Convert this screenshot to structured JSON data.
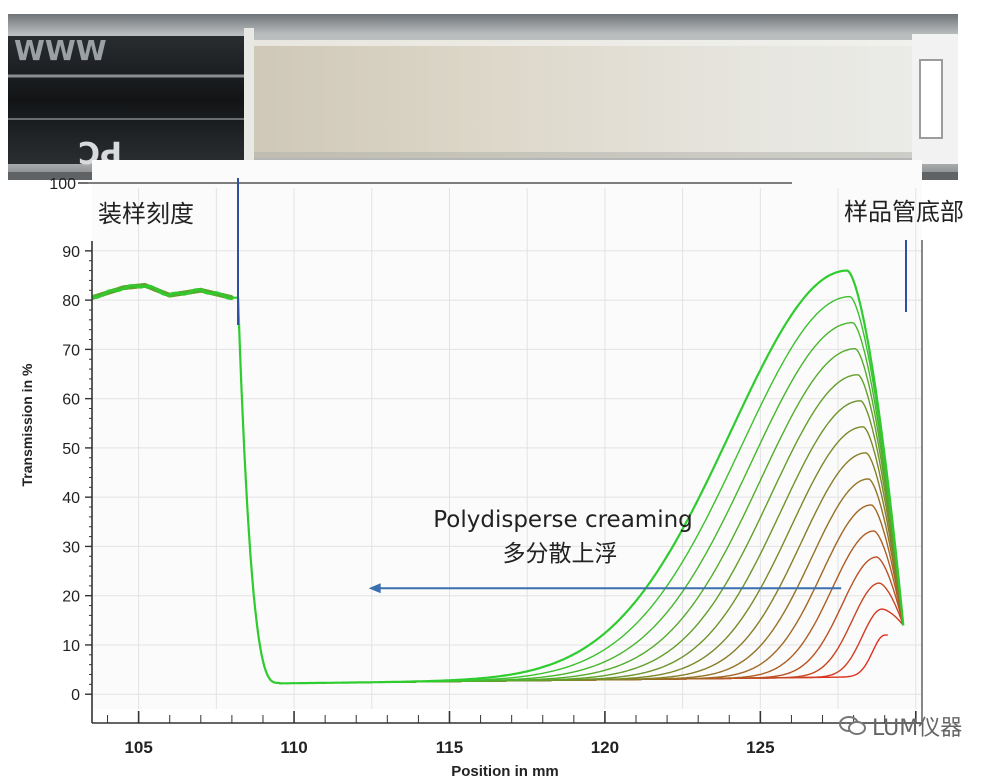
{
  "photo": {
    "cell_marking_left": "WWW",
    "cell_marking_bottom": "PC"
  },
  "annotations": {
    "fill_mark": "装样刻度",
    "tube_bottom": "样品管底部",
    "arrow_label_en": "Polydisperse creaming",
    "arrow_label_zh": "多分散上浮"
  },
  "watermark": "LUM仪器",
  "colors": {
    "early_profile": "#e03020",
    "late_profile": "#2fcc2f",
    "arrow": "#3b6fb0",
    "marker_line": "#2f4fa0",
    "grid": "#e3e3e3"
  },
  "chart_data": {
    "type": "line",
    "xlabel": "Position in mm",
    "ylabel": "Transmission in %",
    "xlim": [
      103.5,
      130.2
    ],
    "ylim": [
      -3,
      92
    ],
    "x_ticks": [
      105,
      110,
      115,
      120,
      125
    ],
    "y_ticks": [
      0,
      10,
      20,
      30,
      40,
      50,
      60,
      70,
      80,
      90
    ],
    "y_extra_tick": 100,
    "grid": true,
    "fill_mark_position": 108.2,
    "tube_bottom_position": 129.4,
    "profile_count": 15,
    "profile_color_order": "red (earliest) to green (latest)",
    "key_points": {
      "plateau_left": {
        "x": [
          103.5,
          104.5,
          105.2,
          106.0,
          107.0,
          108.0
        ],
        "y": [
          80.5,
          82.5,
          83.0,
          81.0,
          82.0,
          80.5
        ]
      },
      "drop": {
        "x": [
          108.2,
          108.7,
          109.5,
          110
        ],
        "y": [
          78,
          6,
          2.5,
          2
        ]
      },
      "baseline_y": 2,
      "first_profile_peak": {
        "x": 129.0,
        "y": 12
      },
      "last_profile_peak": {
        "x": 127.8,
        "y": 86
      }
    }
  }
}
